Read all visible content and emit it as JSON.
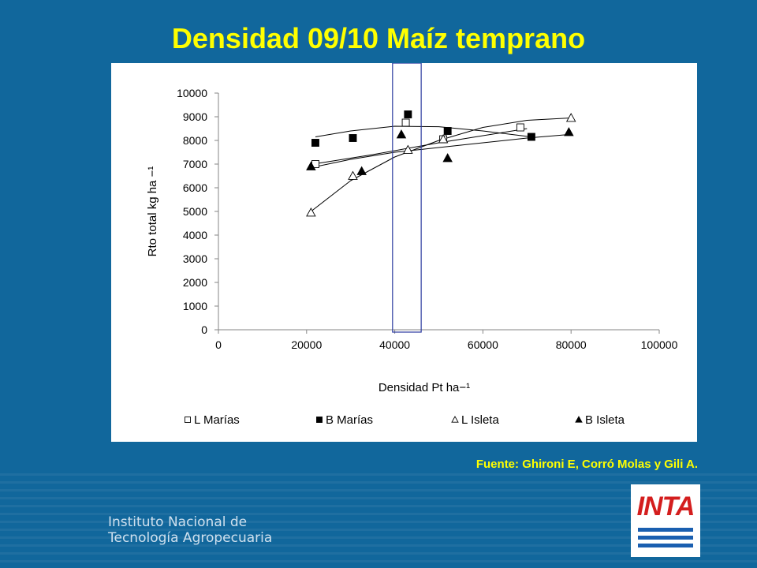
{
  "slide": {
    "title": "Densidad 09/10 Maíz temprano",
    "source": "Fuente: Ghironi E, Corró Molas y Gili A.",
    "institute_line1": "Instituto Nacional de",
    "institute_line2": "Tecnología Agropecuaria",
    "logo_text": "INTA"
  },
  "colors": {
    "background": "#11679c",
    "title": "#ffff00",
    "highlight_box": "#2b3aa0",
    "logo_red": "#d41e1e",
    "logo_blue": "#1a5fb0"
  },
  "chart_data": {
    "type": "scatter",
    "xlabel": "Densidad Pt ha−¹",
    "ylabel": "Rto total kg ha −¹",
    "xlim": [
      0,
      100000
    ],
    "ylim": [
      0,
      10000
    ],
    "x_ticks": [
      "0",
      "20000",
      "40000",
      "60000",
      "80000",
      "100000"
    ],
    "y_ticks": [
      "0",
      "1000",
      "2000",
      "3000",
      "4000",
      "5000",
      "6000",
      "7000",
      "8000",
      "9000",
      "10000"
    ],
    "grid": false,
    "legend_position": "bottom",
    "highlight_band": [
      39500,
      46000
    ],
    "series": [
      {
        "name": "L Marías",
        "marker": "open-square",
        "points": [
          [
            22000,
            7000
          ],
          [
            42500,
            8750
          ],
          [
            51000,
            8050
          ],
          [
            68500,
            8550
          ]
        ],
        "trend": [
          [
            21500,
            7000
          ],
          [
            35000,
            7400
          ],
          [
            50000,
            7900
          ],
          [
            60000,
            8200
          ],
          [
            70000,
            8500
          ]
        ]
      },
      {
        "name": "B Marías",
        "marker": "filled-square",
        "points": [
          [
            22000,
            7900
          ],
          [
            30500,
            8100
          ],
          [
            43000,
            9100
          ],
          [
            52000,
            8400
          ],
          [
            71000,
            8150
          ]
        ],
        "trend": [
          [
            22000,
            8150
          ],
          [
            30000,
            8400
          ],
          [
            40000,
            8600
          ],
          [
            50000,
            8580
          ],
          [
            60000,
            8400
          ],
          [
            71000,
            8150
          ]
        ]
      },
      {
        "name": "L Isleta",
        "marker": "open-triangle",
        "points": [
          [
            21000,
            4950
          ],
          [
            30500,
            6500
          ],
          [
            43000,
            7600
          ],
          [
            51000,
            8050
          ],
          [
            80000,
            8950
          ]
        ],
        "trend": [
          [
            21000,
            5000
          ],
          [
            30000,
            6300
          ],
          [
            40000,
            7300
          ],
          [
            50000,
            8000
          ],
          [
            60000,
            8550
          ],
          [
            70000,
            8850
          ],
          [
            80000,
            8950
          ]
        ]
      },
      {
        "name": "B Isleta",
        "marker": "filled-triangle",
        "points": [
          [
            21000,
            6900
          ],
          [
            32500,
            6700
          ],
          [
            41500,
            8250
          ],
          [
            52000,
            7250
          ],
          [
            79500,
            8350
          ]
        ],
        "trend": [
          [
            21000,
            6850
          ],
          [
            30000,
            7200
          ],
          [
            40000,
            7500
          ],
          [
            50000,
            7700
          ],
          [
            60000,
            7900
          ],
          [
            70000,
            8100
          ],
          [
            79500,
            8250
          ]
        ]
      }
    ]
  }
}
